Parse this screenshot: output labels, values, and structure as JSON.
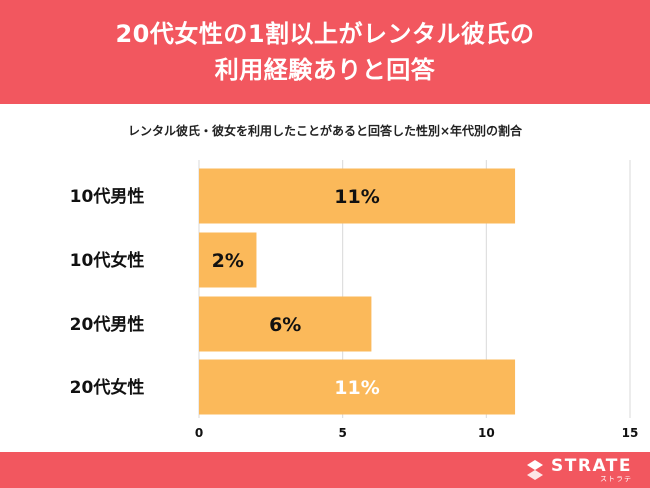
{
  "header": {
    "title_line1": "20代女性の1割以上がレンタル彼氏の",
    "title_line2": "利用経験ありと回答"
  },
  "chart_data": {
    "type": "bar",
    "orientation": "horizontal",
    "title": "20代女性の1割以上がレンタル彼氏の利用経験ありと回答",
    "subtitle": "レンタル彼氏・彼女を利用したことがあると回答した性別×年代別の割合",
    "categories": [
      "10代男性",
      "10代女性",
      "20代男性",
      "20代女性"
    ],
    "values": [
      11,
      2,
      6,
      11
    ],
    "value_labels": [
      "11%",
      "2%",
      "6%",
      "11%"
    ],
    "label_colors": [
      "#111111",
      "#111111",
      "#111111",
      "#ffffff"
    ],
    "xlim": [
      0,
      15
    ],
    "xticks": [
      "0",
      "5",
      "10",
      "15"
    ],
    "grid": true,
    "bar_color": "#fbb95a"
  },
  "footer": {
    "brand": "STRATE",
    "brand_kana": "ストラテ"
  },
  "colors": {
    "accent": "#f2575f",
    "bar": "#fbb95a",
    "grid": "#d9d9d9"
  }
}
